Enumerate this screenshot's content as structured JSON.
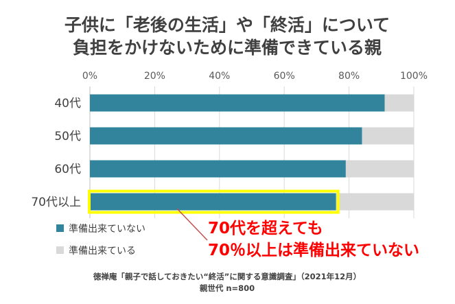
{
  "chart_data": {
    "type": "bar",
    "orientation": "horizontal",
    "stacked": true,
    "title_lines": [
      "子供に「老後の生活」や「終活」について",
      "負担をかけないために準備できている親"
    ],
    "categories": [
      "40代",
      "50代",
      "60代",
      "70代以上"
    ],
    "x_ticks": [
      "0%",
      "20%",
      "40%",
      "60%",
      "80%",
      "100%"
    ],
    "xlim": [
      0,
      100
    ],
    "grid": true,
    "series": [
      {
        "name": "準備出来ていない",
        "color": "#31849b",
        "values": [
          91,
          84,
          79,
          76
        ]
      },
      {
        "name": "準備出来ている",
        "color": "#d9d9d9",
        "values": [
          9,
          16,
          21,
          24
        ]
      }
    ],
    "highlight_category": "70代以上",
    "highlight_color": "#ffff00",
    "legend_position": "bottom-left",
    "annotation_lines": [
      "70代を超えても",
      "70％以上は準備出来ていない"
    ],
    "annotation_color": "#ff0000",
    "callout_line_color": "#c0504d",
    "footnote_lines": [
      "徳禅庵「親子で話しておきたい“終活”に関する意識調査」（2021年12月）",
      "親世代 n=800"
    ],
    "text_color": "#404040"
  }
}
